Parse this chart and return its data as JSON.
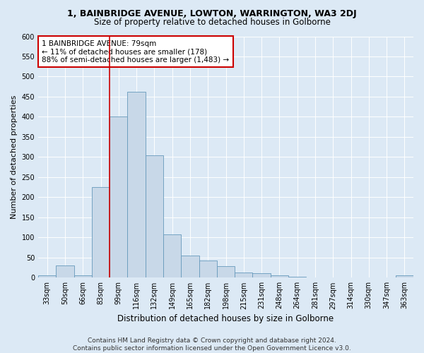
{
  "title": "1, BAINBRIDGE AVENUE, LOWTON, WARRINGTON, WA3 2DJ",
  "subtitle": "Size of property relative to detached houses in Golborne",
  "xlabel": "Distribution of detached houses by size in Golborne",
  "ylabel": "Number of detached properties",
  "footer_line1": "Contains HM Land Registry data © Crown copyright and database right 2024.",
  "footer_line2": "Contains public sector information licensed under the Open Government Licence v3.0.",
  "bar_labels": [
    "33sqm",
    "50sqm",
    "66sqm",
    "83sqm",
    "99sqm",
    "116sqm",
    "132sqm",
    "149sqm",
    "165sqm",
    "182sqm",
    "198sqm",
    "215sqm",
    "231sqm",
    "248sqm",
    "264sqm",
    "281sqm",
    "297sqm",
    "314sqm",
    "330sqm",
    "347sqm",
    "363sqm"
  ],
  "bar_values": [
    5,
    30,
    5,
    225,
    400,
    462,
    305,
    108,
    55,
    42,
    28,
    13,
    11,
    5,
    3,
    1,
    1,
    1,
    1,
    1,
    5
  ],
  "bar_color": "#c8d8e8",
  "bar_edge_color": "#6699bb",
  "vline_x": 3.5,
  "vline_color": "#cc0000",
  "annotation_text": "1 BAINBRIDGE AVENUE: 79sqm\n← 11% of detached houses are smaller (178)\n88% of semi-detached houses are larger (1,483) →",
  "annotation_box_facecolor": "#ffffff",
  "annotation_box_edgecolor": "#cc0000",
  "ylim": [
    0,
    600
  ],
  "yticks": [
    0,
    50,
    100,
    150,
    200,
    250,
    300,
    350,
    400,
    450,
    500,
    550,
    600
  ],
  "background_color": "#dce9f5",
  "plot_bg_color": "#dce9f5",
  "grid_color": "#ffffff",
  "title_fontsize": 9,
  "subtitle_fontsize": 8.5,
  "ylabel_fontsize": 8,
  "xlabel_fontsize": 8.5,
  "tick_fontsize": 7,
  "annotation_fontsize": 7.5,
  "footer_fontsize": 6.5
}
